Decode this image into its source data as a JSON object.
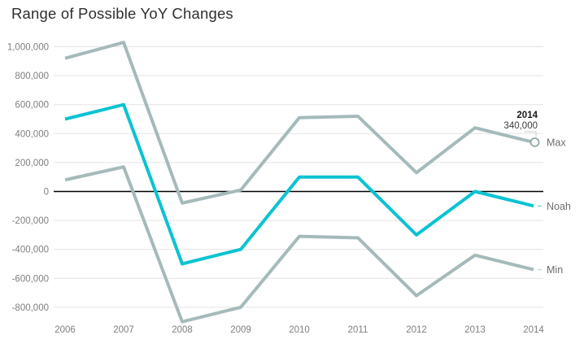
{
  "title": "Range of Possible YoY Changes",
  "chart_data": {
    "type": "line",
    "title": "Range of Possible YoY Changes",
    "xlabel": "",
    "ylabel": "",
    "x": [
      2006,
      2007,
      2008,
      2009,
      2010,
      2011,
      2012,
      2013,
      2014
    ],
    "series": [
      {
        "name": "Max",
        "color": "#a5baba",
        "values": [
          920000,
          1030000,
          -80000,
          10000,
          510000,
          520000,
          130000,
          440000,
          340000
        ]
      },
      {
        "name": "Noah",
        "color": "#0ac3d2",
        "values": [
          500000,
          600000,
          -500000,
          -400000,
          100000,
          100000,
          -300000,
          0,
          -100000
        ]
      },
      {
        "name": "Min",
        "color": "#a5baba",
        "values": [
          80000,
          170000,
          -900000,
          -800000,
          -310000,
          -320000,
          -720000,
          -440000,
          -540000
        ]
      }
    ],
    "y_ticks": [
      1000000,
      800000,
      600000,
      400000,
      200000,
      0,
      -200000,
      -400000,
      -600000,
      -800000
    ],
    "ylim": [
      -930000,
      1060000
    ],
    "grid": true,
    "legend_position": "line-end-labels-right",
    "zero_line": true,
    "annotation": {
      "series": "Max",
      "x": "2014",
      "value_label": "340,000",
      "marker": "open-circle"
    },
    "colors": {
      "grid": "#e3e3e3",
      "zero_line": "#000000",
      "axis_text": "#7f7f7f",
      "series_label_text": "#6e6e6e",
      "annotation_title": "#1a1a1a",
      "annotation_value": "#3c3c3c",
      "marker_stroke": "#8fa8a8",
      "callout_line": "#c9c9c9"
    }
  }
}
